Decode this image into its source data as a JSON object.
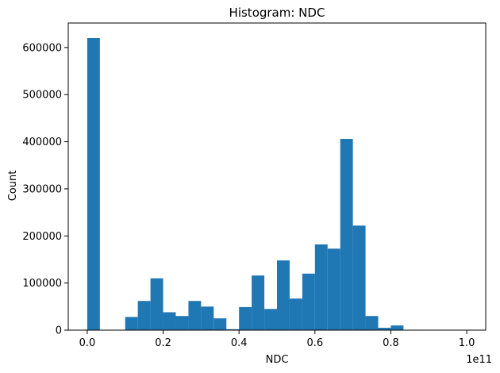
{
  "chart_data": {
    "type": "bar",
    "title": "Histogram: NDC",
    "xlabel": "NDC",
    "ylabel": "Count",
    "x_offset_label": "1e11",
    "xlim": [
      -0.05,
      1.05
    ],
    "ylim": [
      0,
      652000
    ],
    "xticks": [
      0.0,
      0.2,
      0.4,
      0.6,
      0.8,
      1.0
    ],
    "xtick_labels": [
      "0.0",
      "0.2",
      "0.4",
      "0.6",
      "0.8",
      "1.0"
    ],
    "yticks": [
      0,
      100000,
      200000,
      300000,
      400000,
      500000,
      600000
    ],
    "ytick_labels": [
      "0",
      "100000",
      "200000",
      "300000",
      "400000",
      "500000",
      "600000"
    ],
    "bin_edges": [
      0.0,
      0.0333,
      0.0667,
      0.1,
      0.1333,
      0.1667,
      0.2,
      0.2333,
      0.2667,
      0.3,
      0.3333,
      0.3667,
      0.4,
      0.4333,
      0.4667,
      0.5,
      0.5333,
      0.5667,
      0.6,
      0.6333,
      0.6667,
      0.7,
      0.7333,
      0.7667,
      0.8,
      0.8333,
      0.8667,
      0.9,
      0.9333,
      0.9667,
      1.0
    ],
    "values": [
      620000,
      0,
      0,
      28000,
      62000,
      110000,
      38000,
      30000,
      62000,
      50000,
      25000,
      2000,
      49000,
      116000,
      45000,
      148000,
      67000,
      120000,
      182000,
      173000,
      406000,
      222000,
      30000,
      5000,
      10000,
      0,
      0,
      0,
      0,
      0
    ],
    "bar_color": "#1f77b4",
    "grid": false
  }
}
